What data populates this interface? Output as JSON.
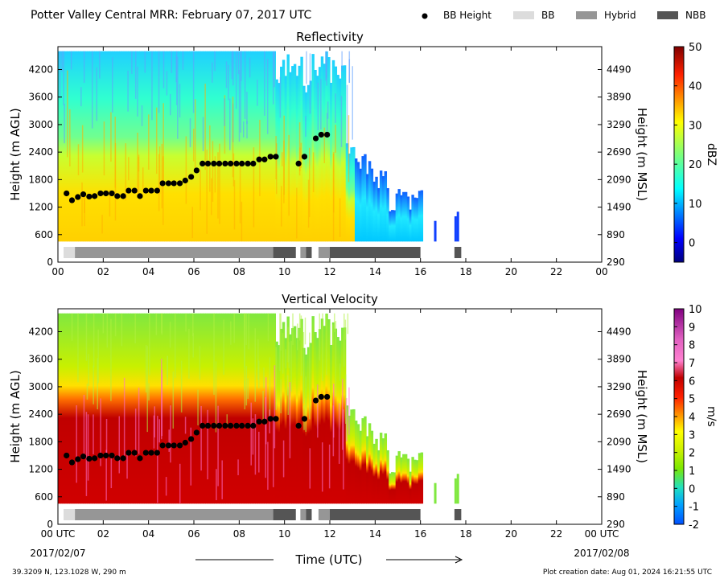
{
  "header": {
    "title": "Potter Valley Central MRR:  February 07, 2017 UTC",
    "legend": [
      {
        "label": "BB Height",
        "marker": "dot",
        "color": "#000000"
      },
      {
        "label": "BB",
        "marker": "box",
        "color": "#dcdcdc"
      },
      {
        "label": "Hybrid",
        "marker": "box",
        "color": "#969696"
      },
      {
        "label": "NBB",
        "marker": "box",
        "color": "#555555"
      }
    ]
  },
  "footer": {
    "location": "39.3209 N, 123.1028 W, 290 m",
    "creation": "Plot creation date: Aug 01, 2024 16:21:55 UTC",
    "xlabel": "Time (UTC)",
    "start_date": "2017/02/07",
    "end_date": "2017/02/08"
  },
  "chart_data": [
    {
      "type": "heatmap",
      "title": "Reflectivity",
      "ylabel": "Height (m AGL)",
      "ylabel_right": "Height (m MSL)",
      "xlim": [
        0,
        24
      ],
      "ylim": [
        0,
        4700
      ],
      "x_ticks": [
        "00",
        "02",
        "04",
        "06",
        "08",
        "10",
        "12",
        "14",
        "16",
        "18",
        "20",
        "22",
        "00"
      ],
      "y_ticks": [
        0,
        600,
        1200,
        1800,
        2400,
        3000,
        3600,
        4200
      ],
      "y_ticks_right": [
        290,
        890,
        1490,
        2090,
        2690,
        3290,
        3890,
        4490
      ],
      "colorbar": {
        "label": "dBZ",
        "min": -5,
        "max": 50,
        "ticks": [
          0,
          10,
          20,
          30,
          40,
          50
        ],
        "cmap": "jet"
      }
    },
    {
      "type": "heatmap",
      "title": "Vertical Velocity",
      "ylabel": "Height (m AGL)",
      "ylabel_right": "Height (m MSL)",
      "xlim": [
        0,
        24
      ],
      "ylim": [
        0,
        4700
      ],
      "x_ticks": [
        "00 UTC",
        "02",
        "04",
        "06",
        "08",
        "10",
        "12",
        "14",
        "16",
        "18",
        "20",
        "22",
        "00 UTC"
      ],
      "y_ticks": [
        0,
        600,
        1200,
        1800,
        2400,
        3000,
        3600,
        4200
      ],
      "y_ticks_right": [
        290,
        890,
        1490,
        2090,
        2690,
        3290,
        3890,
        4490
      ],
      "colorbar": {
        "label": "m/s",
        "min": -2,
        "max": 10,
        "ticks": [
          -2,
          -1,
          0,
          1,
          2,
          3,
          4,
          5,
          6,
          7,
          8,
          9,
          10
        ],
        "cmap": "velocity"
      }
    }
  ],
  "bb_height": [
    [
      0.38,
      1500
    ],
    [
      0.62,
      1350
    ],
    [
      0.88,
      1420
    ],
    [
      1.12,
      1480
    ],
    [
      1.38,
      1430
    ],
    [
      1.62,
      1440
    ],
    [
      1.88,
      1500
    ],
    [
      2.12,
      1500
    ],
    [
      2.38,
      1500
    ],
    [
      2.62,
      1440
    ],
    [
      2.88,
      1440
    ],
    [
      3.12,
      1560
    ],
    [
      3.38,
      1560
    ],
    [
      3.62,
      1440
    ],
    [
      3.88,
      1560
    ],
    [
      4.12,
      1560
    ],
    [
      4.38,
      1560
    ],
    [
      4.62,
      1720
    ],
    [
      4.88,
      1720
    ],
    [
      5.12,
      1720
    ],
    [
      5.38,
      1720
    ],
    [
      5.62,
      1780
    ],
    [
      5.88,
      1860
    ],
    [
      6.12,
      2000
    ],
    [
      6.38,
      2150
    ],
    [
      6.62,
      2150
    ],
    [
      6.88,
      2150
    ],
    [
      7.12,
      2150
    ],
    [
      7.38,
      2150
    ],
    [
      7.62,
      2150
    ],
    [
      7.88,
      2150
    ],
    [
      8.12,
      2150
    ],
    [
      8.38,
      2150
    ],
    [
      8.62,
      2150
    ],
    [
      8.88,
      2240
    ],
    [
      9.12,
      2240
    ],
    [
      9.38,
      2300
    ],
    [
      9.62,
      2300
    ],
    [
      10.62,
      2150
    ],
    [
      10.88,
      2300
    ],
    [
      11.38,
      2700
    ],
    [
      11.62,
      2780
    ],
    [
      11.88,
      2780
    ]
  ],
  "bb_type_bars": [
    {
      "start": 0.25,
      "end": 0.75,
      "type": "BB"
    },
    {
      "start": 0.75,
      "end": 9.5,
      "type": "Hybrid"
    },
    {
      "start": 9.5,
      "end": 10.5,
      "type": "NBB"
    },
    {
      "start": 10.7,
      "end": 10.95,
      "type": "Hybrid"
    },
    {
      "start": 10.95,
      "end": 11.2,
      "type": "NBB"
    },
    {
      "start": 11.5,
      "end": 12.0,
      "type": "Hybrid"
    },
    {
      "start": 12.0,
      "end": 16.0,
      "type": "NBB"
    },
    {
      "start": 17.5,
      "end": 17.8,
      "type": "NBB"
    }
  ]
}
